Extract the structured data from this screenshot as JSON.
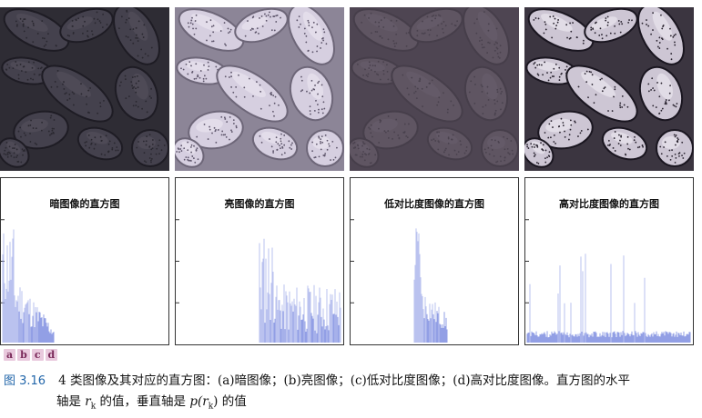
{
  "panels": [
    {
      "id": "a",
      "image_name": "dark-image",
      "hist_title": "暗图像的直方图",
      "tone": "dark"
    },
    {
      "id": "b",
      "image_name": "bright-image",
      "hist_title": "亮图像的直方图",
      "tone": "bright"
    },
    {
      "id": "c",
      "image_name": "low-contrast-image",
      "hist_title": "低对比度图像的直方图",
      "tone": "lowc"
    },
    {
      "id": "d",
      "image_name": "high-contrast-image",
      "hist_title": "高对比度图像的直方图",
      "tone": "highc"
    }
  ],
  "sub_labels": [
    "a",
    "b",
    "c",
    "d"
  ],
  "caption": {
    "figure_number": "图 3.16",
    "text_line1": "4 类图像及其对应的直方图：(a)暗图像；(b)亮图像；(c)低对比度图像；(d)高对比度图像。直方图的水平",
    "text_line2_a": "轴是 ",
    "r_symbol": "r",
    "r_sub": "k",
    "text_line2_b": " 的值，垂直轴是 ",
    "p_symbol": "p(r",
    "p_sub": "k",
    "p_close": ")",
    "text_line2_c": " 的值"
  },
  "colors": {
    "hist_bar": "#9aa6e8",
    "hist_bar_dense": "#5f72d9",
    "frame": "#333333"
  }
}
